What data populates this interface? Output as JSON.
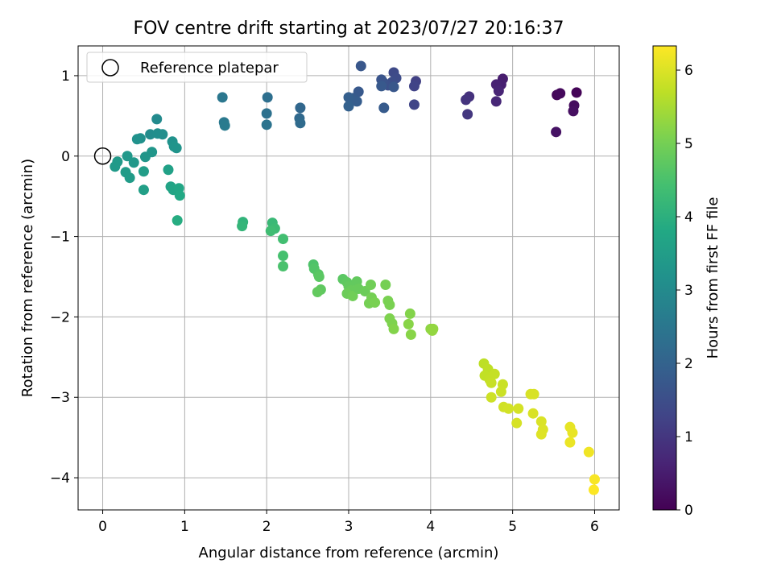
{
  "chart_data": {
    "type": "scatter",
    "title": "FOV centre drift starting at 2023/07/27 20:16:37",
    "xlabel": "Angular distance from reference (arcmin)",
    "ylabel": "Rotation from reference (arcmin)",
    "xlim": [
      -0.3,
      6.3
    ],
    "ylim": [
      -4.4,
      1.37
    ],
    "xticks": [
      0,
      1,
      2,
      3,
      4,
      5,
      6
    ],
    "yticks": [
      -4,
      -3,
      -2,
      -1,
      0,
      1
    ],
    "grid": true,
    "legend": {
      "placement": "top-left",
      "entries": [
        "Reference platepar"
      ]
    },
    "reference_point": {
      "x": 0,
      "y": 0,
      "label": "Reference platepar"
    },
    "colorbar": {
      "label": "Hours from first FF file",
      "colormap": "viridis",
      "range": [
        0,
        6.33
      ],
      "ticks": [
        0,
        1,
        2,
        3,
        4,
        5,
        6
      ]
    },
    "points": [
      {
        "x": 5.78,
        "y": 0.79,
        "hours": 0.05
      },
      {
        "x": 5.54,
        "y": 0.76,
        "hours": 0.1
      },
      {
        "x": 5.58,
        "y": 0.78,
        "hours": 0.15
      },
      {
        "x": 5.75,
        "y": 0.63,
        "hours": 0.2
      },
      {
        "x": 5.74,
        "y": 0.56,
        "hours": 0.25
      },
      {
        "x": 5.53,
        "y": 0.3,
        "hours": 0.3
      },
      {
        "x": 4.88,
        "y": 0.96,
        "hours": 0.5
      },
      {
        "x": 4.86,
        "y": 0.89,
        "hours": 0.55
      },
      {
        "x": 4.8,
        "y": 0.89,
        "hours": 0.6
      },
      {
        "x": 4.83,
        "y": 0.81,
        "hours": 0.65
      },
      {
        "x": 4.8,
        "y": 0.68,
        "hours": 0.7
      },
      {
        "x": 4.47,
        "y": 0.74,
        "hours": 0.9
      },
      {
        "x": 4.43,
        "y": 0.7,
        "hours": 0.95
      },
      {
        "x": 4.45,
        "y": 0.52,
        "hours": 1.0
      },
      {
        "x": 3.82,
        "y": 0.93,
        "hours": 1.2
      },
      {
        "x": 3.8,
        "y": 0.87,
        "hours": 1.25
      },
      {
        "x": 3.8,
        "y": 0.64,
        "hours": 1.3
      },
      {
        "x": 3.55,
        "y": 1.04,
        "hours": 1.4
      },
      {
        "x": 3.58,
        "y": 0.97,
        "hours": 1.45
      },
      {
        "x": 3.53,
        "y": 0.92,
        "hours": 1.5
      },
      {
        "x": 3.48,
        "y": 0.88,
        "hours": 1.55
      },
      {
        "x": 3.42,
        "y": 0.92,
        "hours": 1.6
      },
      {
        "x": 3.4,
        "y": 0.95,
        "hours": 1.65
      },
      {
        "x": 3.55,
        "y": 0.86,
        "hours": 1.7
      },
      {
        "x": 3.4,
        "y": 0.87,
        "hours": 1.75
      },
      {
        "x": 3.43,
        "y": 0.6,
        "hours": 1.8
      },
      {
        "x": 3.15,
        "y": 1.12,
        "hours": 1.7
      },
      {
        "x": 3.12,
        "y": 0.8,
        "hours": 1.75
      },
      {
        "x": 3.05,
        "y": 0.72,
        "hours": 1.8
      },
      {
        "x": 3.1,
        "y": 0.68,
        "hours": 1.85
      },
      {
        "x": 3.0,
        "y": 0.73,
        "hours": 1.9
      },
      {
        "x": 3.0,
        "y": 0.62,
        "hours": 1.95
      },
      {
        "x": 2.41,
        "y": 0.6,
        "hours": 2.1
      },
      {
        "x": 2.4,
        "y": 0.47,
        "hours": 2.15
      },
      {
        "x": 2.41,
        "y": 0.41,
        "hours": 2.2
      },
      {
        "x": 2.01,
        "y": 0.73,
        "hours": 2.3
      },
      {
        "x": 2.0,
        "y": 0.53,
        "hours": 2.35
      },
      {
        "x": 2.0,
        "y": 0.39,
        "hours": 2.4
      },
      {
        "x": 1.46,
        "y": 0.73,
        "hours": 2.5
      },
      {
        "x": 1.48,
        "y": 0.42,
        "hours": 2.55
      },
      {
        "x": 1.49,
        "y": 0.38,
        "hours": 2.6
      },
      {
        "x": 0.66,
        "y": 0.46,
        "hours": 3.0
      },
      {
        "x": 0.58,
        "y": 0.27,
        "hours": 3.05
      },
      {
        "x": 0.67,
        "y": 0.28,
        "hours": 3.1
      },
      {
        "x": 0.73,
        "y": 0.27,
        "hours": 3.1
      },
      {
        "x": 0.46,
        "y": 0.22,
        "hours": 3.15
      },
      {
        "x": 0.42,
        "y": 0.21,
        "hours": 3.2
      },
      {
        "x": 0.85,
        "y": 0.18,
        "hours": 3.2
      },
      {
        "x": 0.87,
        "y": 0.12,
        "hours": 3.25
      },
      {
        "x": 0.9,
        "y": 0.1,
        "hours": 3.25
      },
      {
        "x": 0.6,
        "y": 0.05,
        "hours": 3.3
      },
      {
        "x": 0.52,
        "y": -0.01,
        "hours": 3.3
      },
      {
        "x": 0.3,
        "y": 0.0,
        "hours": 3.35
      },
      {
        "x": 0.38,
        "y": -0.08,
        "hours": 3.35
      },
      {
        "x": 0.18,
        "y": -0.07,
        "hours": 3.4
      },
      {
        "x": 0.15,
        "y": -0.13,
        "hours": 3.4
      },
      {
        "x": 0.28,
        "y": -0.2,
        "hours": 3.45
      },
      {
        "x": 0.33,
        "y": -0.27,
        "hours": 3.45
      },
      {
        "x": 0.5,
        "y": -0.19,
        "hours": 3.5
      },
      {
        "x": 0.5,
        "y": -0.42,
        "hours": 3.55
      },
      {
        "x": 0.8,
        "y": -0.17,
        "hours": 3.6
      },
      {
        "x": 0.83,
        "y": -0.38,
        "hours": 3.65
      },
      {
        "x": 0.86,
        "y": -0.42,
        "hours": 3.7
      },
      {
        "x": 0.93,
        "y": -0.4,
        "hours": 3.75
      },
      {
        "x": 0.94,
        "y": -0.49,
        "hours": 3.8
      },
      {
        "x": 0.91,
        "y": -0.8,
        "hours": 3.9
      },
      {
        "x": 1.71,
        "y": -0.82,
        "hours": 4.1
      },
      {
        "x": 1.7,
        "y": -0.87,
        "hours": 4.15
      },
      {
        "x": 2.07,
        "y": -0.83,
        "hours": 4.25
      },
      {
        "x": 2.1,
        "y": -0.9,
        "hours": 4.3
      },
      {
        "x": 2.05,
        "y": -0.93,
        "hours": 4.35
      },
      {
        "x": 2.2,
        "y": -1.03,
        "hours": 4.4
      },
      {
        "x": 2.2,
        "y": -1.24,
        "hours": 4.45
      },
      {
        "x": 2.2,
        "y": -1.37,
        "hours": 4.5
      },
      {
        "x": 2.57,
        "y": -1.35,
        "hours": 4.55
      },
      {
        "x": 2.58,
        "y": -1.4,
        "hours": 4.6
      },
      {
        "x": 2.63,
        "y": -1.47,
        "hours": 4.65
      },
      {
        "x": 2.64,
        "y": -1.5,
        "hours": 4.7
      },
      {
        "x": 2.66,
        "y": -1.66,
        "hours": 4.75
      },
      {
        "x": 2.62,
        "y": -1.69,
        "hours": 4.8
      },
      {
        "x": 2.93,
        "y": -1.53,
        "hours": 4.7
      },
      {
        "x": 2.98,
        "y": -1.57,
        "hours": 4.75
      },
      {
        "x": 3.0,
        "y": -1.62,
        "hours": 4.8
      },
      {
        "x": 3.03,
        "y": -1.67,
        "hours": 4.85
      },
      {
        "x": 2.98,
        "y": -1.71,
        "hours": 4.9
      },
      {
        "x": 3.05,
        "y": -1.74,
        "hours": 4.95
      },
      {
        "x": 3.1,
        "y": -1.56,
        "hours": 4.8
      },
      {
        "x": 3.12,
        "y": -1.65,
        "hours": 4.85
      },
      {
        "x": 3.2,
        "y": -1.68,
        "hours": 4.9
      },
      {
        "x": 3.27,
        "y": -1.6,
        "hours": 4.95
      },
      {
        "x": 3.28,
        "y": -1.76,
        "hours": 5.0
      },
      {
        "x": 3.25,
        "y": -1.83,
        "hours": 5.0
      },
      {
        "x": 3.32,
        "y": -1.82,
        "hours": 5.05
      },
      {
        "x": 3.45,
        "y": -1.6,
        "hours": 5.0
      },
      {
        "x": 3.48,
        "y": -1.8,
        "hours": 5.05
      },
      {
        "x": 3.5,
        "y": -1.85,
        "hours": 5.05
      },
      {
        "x": 3.5,
        "y": -2.02,
        "hours": 5.1
      },
      {
        "x": 3.53,
        "y": -2.08,
        "hours": 5.1
      },
      {
        "x": 3.55,
        "y": -2.15,
        "hours": 5.15
      },
      {
        "x": 3.75,
        "y": -1.96,
        "hours": 5.15
      },
      {
        "x": 3.73,
        "y": -2.09,
        "hours": 5.2
      },
      {
        "x": 3.76,
        "y": -2.22,
        "hours": 5.2
      },
      {
        "x": 4.0,
        "y": -2.15,
        "hours": 5.25
      },
      {
        "x": 4.02,
        "y": -2.17,
        "hours": 5.3
      },
      {
        "x": 4.03,
        "y": -2.15,
        "hours": 5.3
      },
      {
        "x": 4.65,
        "y": -2.58,
        "hours": 5.7
      },
      {
        "x": 4.7,
        "y": -2.65,
        "hours": 5.72
      },
      {
        "x": 4.66,
        "y": -2.73,
        "hours": 5.74
      },
      {
        "x": 4.72,
        "y": -2.78,
        "hours": 5.76
      },
      {
        "x": 4.78,
        "y": -2.71,
        "hours": 5.78
      },
      {
        "x": 4.74,
        "y": -2.82,
        "hours": 5.8
      },
      {
        "x": 4.88,
        "y": -2.84,
        "hours": 5.82
      },
      {
        "x": 4.86,
        "y": -2.93,
        "hours": 5.84
      },
      {
        "x": 4.74,
        "y": -3.0,
        "hours": 5.86
      },
      {
        "x": 4.89,
        "y": -3.12,
        "hours": 5.88
      },
      {
        "x": 4.95,
        "y": -3.14,
        "hours": 5.9
      },
      {
        "x": 5.07,
        "y": -3.14,
        "hours": 5.92
      },
      {
        "x": 5.05,
        "y": -3.32,
        "hours": 5.94
      },
      {
        "x": 5.22,
        "y": -2.96,
        "hours": 5.95
      },
      {
        "x": 5.26,
        "y": -2.96,
        "hours": 5.96
      },
      {
        "x": 5.25,
        "y": -3.2,
        "hours": 5.97
      },
      {
        "x": 5.35,
        "y": -3.3,
        "hours": 5.98
      },
      {
        "x": 5.37,
        "y": -3.4,
        "hours": 6.0
      },
      {
        "x": 5.35,
        "y": -3.46,
        "hours": 6.02
      },
      {
        "x": 5.7,
        "y": -3.37,
        "hours": 6.1
      },
      {
        "x": 5.73,
        "y": -3.44,
        "hours": 6.12
      },
      {
        "x": 5.7,
        "y": -3.56,
        "hours": 6.15
      },
      {
        "x": 5.93,
        "y": -3.68,
        "hours": 6.2
      },
      {
        "x": 6.0,
        "y": -4.02,
        "hours": 6.28
      },
      {
        "x": 5.99,
        "y": -4.15,
        "hours": 6.32
      }
    ]
  }
}
